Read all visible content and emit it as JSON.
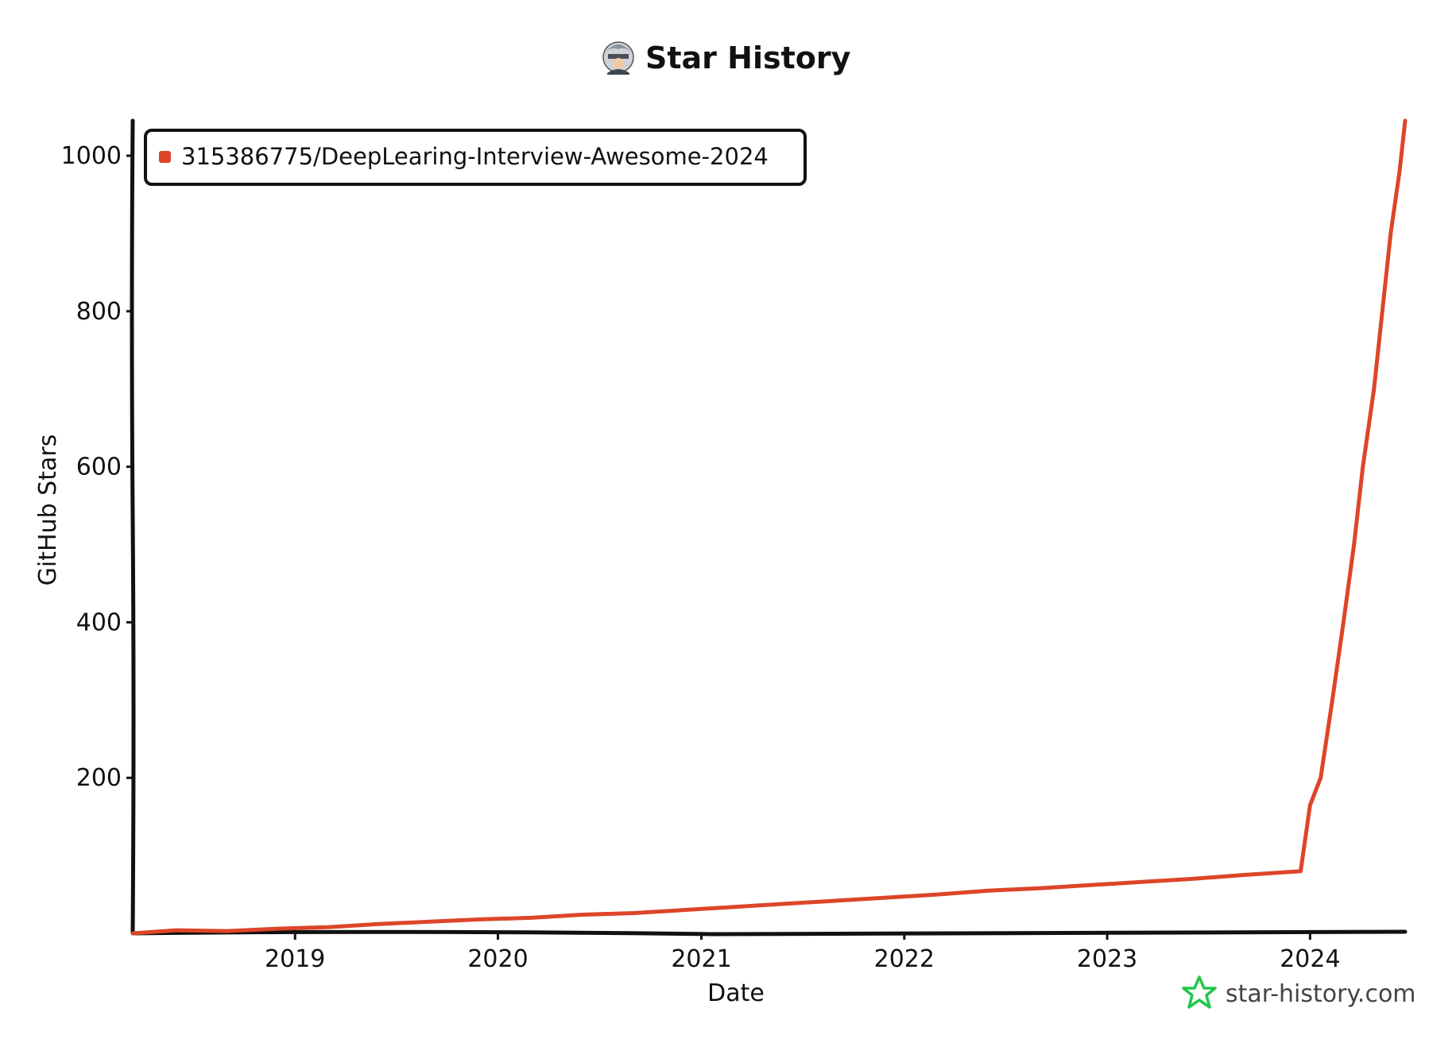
{
  "chart_data": {
    "type": "line",
    "title": "Star History",
    "xlabel": "Date",
    "ylabel": "GitHub Stars",
    "x_ticks": [
      "2019",
      "2020",
      "2021",
      "2022",
      "2023",
      "2024"
    ],
    "y_ticks": [
      200,
      400,
      600,
      800,
      1000
    ],
    "xlim": [
      "2018-03-15",
      "2024-06-20"
    ],
    "ylim": [
      0,
      1045
    ],
    "grid": false,
    "legend_position": "top-left",
    "series": [
      {
        "name": "315386775/DeepLearing-Interview-Awesome-2024",
        "color": "#dd4528",
        "x": [
          "2018-03-15",
          "2018-06-01",
          "2018-09-01",
          "2018-12-01",
          "2019-03-01",
          "2019-06-01",
          "2019-09-01",
          "2019-12-01",
          "2020-03-01",
          "2020-06-01",
          "2020-09-01",
          "2020-12-01",
          "2021-03-01",
          "2021-06-01",
          "2021-09-01",
          "2021-12-01",
          "2022-03-01",
          "2022-06-01",
          "2022-09-01",
          "2022-12-01",
          "2023-03-01",
          "2023-06-01",
          "2023-09-01",
          "2023-12-15",
          "2024-01-01",
          "2024-01-20",
          "2024-02-10",
          "2024-03-01",
          "2024-03-20",
          "2024-04-05",
          "2024-04-25",
          "2024-05-10",
          "2024-05-25",
          "2024-06-10",
          "2024-06-20"
        ],
        "y": [
          0,
          4,
          3,
          6,
          8,
          12,
          15,
          18,
          20,
          24,
          26,
          30,
          34,
          38,
          42,
          46,
          50,
          55,
          58,
          62,
          66,
          70,
          75,
          80,
          165,
          200,
          300,
          400,
          500,
          600,
          700,
          800,
          900,
          980,
          1045
        ]
      }
    ]
  },
  "watermark": {
    "text": "star-history.com",
    "icon": "star-outline-icon",
    "icon_color": "#23c64a"
  },
  "title_icon": "avatar-icon"
}
